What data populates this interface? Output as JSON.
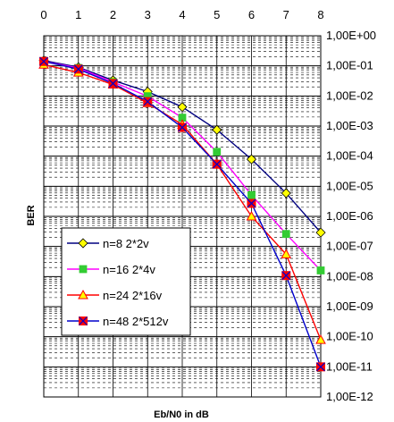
{
  "chart_data": {
    "type": "line",
    "title": "",
    "xlabel": "Eb/N0 in dB",
    "ylabel": "BER",
    "x_ticks": [
      "0",
      "1",
      "2",
      "3",
      "4",
      "5",
      "6",
      "7",
      "8"
    ],
    "y_ticks": [
      "1,00E+00",
      "1,00E-01",
      "1,00E-02",
      "1,00E-03",
      "1,00E-04",
      "1,00E-05",
      "1,00E-06",
      "1,00E-07",
      "1,00E-08",
      "1,00E-09",
      "1,00E-10",
      "1,00E-11",
      "1,00E-12"
    ],
    "xlim": [
      0,
      8
    ],
    "ylim": [
      1e-12,
      1
    ],
    "y_scale": "log",
    "x_axis_position": "top",
    "y_axis_position": "right",
    "grid": true,
    "legend_position": "lower-left",
    "x": [
      0,
      1,
      2,
      3,
      4,
      5,
      6,
      7,
      8
    ],
    "series": [
      {
        "name": "n=8 2*2v",
        "color": "#000080",
        "marker": "diamond",
        "marker_color": "#ffff00",
        "values": [
          0.15,
          0.09,
          0.033,
          0.0139,
          0.0043,
          0.00075,
          7.9e-05,
          5.9e-06,
          2.9e-07
        ]
      },
      {
        "name": "n=16 2*4v",
        "color": "#ff00ff",
        "marker": "square",
        "marker_color": "#33cc33",
        "values": [
          0.14,
          0.085,
          0.029,
          0.0098,
          0.0019,
          0.000139,
          5.1e-06,
          2.6e-07,
          1.6e-08
        ]
      },
      {
        "name": "n=24 2*16v",
        "color": "#ff0000",
        "marker": "triangle",
        "marker_color": "#ffff00",
        "values": [
          0.11,
          0.06,
          0.024,
          0.0058,
          0.00112,
          5.4e-05,
          1e-06,
          5.5e-08,
          7.9e-11
        ]
      },
      {
        "name": "n=48 2*512v",
        "color": "#0000cc",
        "marker": "square-x",
        "marker_color": "#ff0000",
        "values": [
          0.14,
          0.078,
          0.026,
          0.0065,
          0.0009,
          5.4e-05,
          2.7e-06,
          1.08e-08,
          1e-11
        ]
      }
    ]
  }
}
